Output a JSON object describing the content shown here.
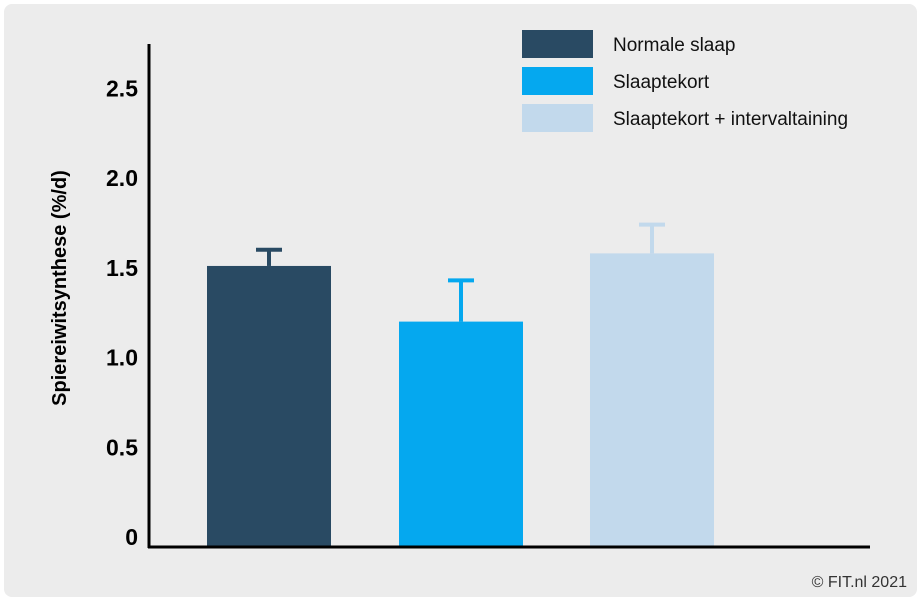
{
  "chart_data": {
    "type": "bar",
    "categories": [
      "Normale slaap",
      "Slaaptekort",
      "Slaaptekort + intervaltaining"
    ],
    "values": [
      1.51,
      1.2,
      1.58
    ],
    "error_upper": [
      1.6,
      1.43,
      1.74
    ],
    "colors": [
      "#294a63",
      "#05a8ef",
      "#c2d9ec"
    ],
    "title": "",
    "xlabel": "",
    "ylabel": "Spiereiwitsynthese (%/d)",
    "ylim": [
      0,
      2.75
    ],
    "yticks": [
      0,
      0.5,
      1.0,
      1.5,
      2.0,
      2.5
    ],
    "ytick_labels": [
      "0",
      "0.5",
      "1.0",
      "1.5",
      "2.0",
      "2.5"
    ],
    "legend": [
      "Normale slaap",
      "Slaaptekort",
      "Slaaptekort + intervaltaining"
    ],
    "legend_position": "top-right",
    "grid": false
  },
  "credit": "© FIT.nl 2021"
}
